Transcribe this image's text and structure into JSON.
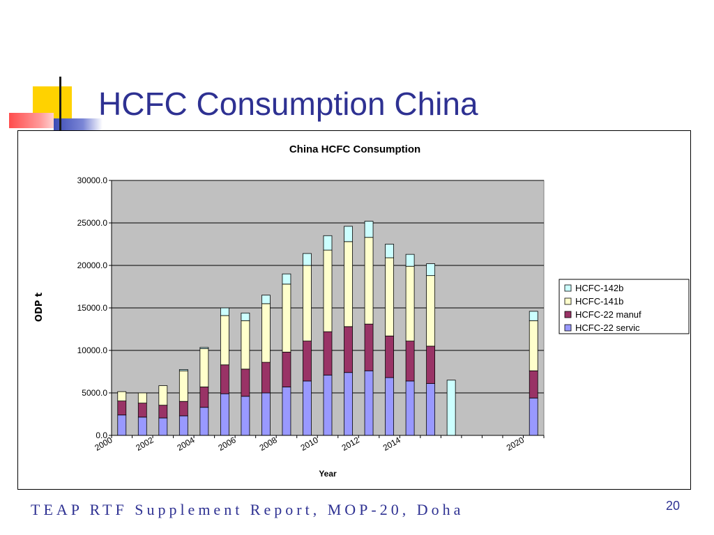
{
  "slide": {
    "title": "HCFC Consumption China",
    "footer": "TEAP RTF Supplement Report, MOP-20, Doha",
    "page_number": "20"
  },
  "chart_data": {
    "type": "bar",
    "stacked": true,
    "title": "China HCFC Consumption",
    "xlabel": "Year",
    "ylabel": "ODP t",
    "ylim": [
      0,
      30000
    ],
    "yticks": [
      0,
      5000,
      10000,
      15000,
      20000,
      25000,
      30000
    ],
    "ytick_format": "0.0",
    "grid": true,
    "plot_background": "#c0c0c0",
    "legend": "right",
    "categories": [
      2000,
      2001,
      2002,
      2003,
      2004,
      2005,
      2006,
      2007,
      2008,
      2009,
      2010,
      2011,
      2012,
      2013,
      2014,
      2015,
      2016,
      2017,
      2018,
      2019,
      2020
    ],
    "xtick_labels": [
      "2000",
      "",
      "2002",
      "",
      "2004",
      "",
      "2006",
      "",
      "2008",
      "",
      "2010",
      "",
      "2012",
      "",
      "2014",
      "",
      "",
      "",
      "",
      "",
      "2020"
    ],
    "series": [
      {
        "name": "HCFC-22 servic",
        "color": "#9999ff",
        "values": [
          2400,
          2150,
          2050,
          2300,
          3300,
          4900,
          4600,
          5000,
          5700,
          6400,
          7100,
          7400,
          7600,
          6800,
          6400,
          6100,
          0,
          0,
          0,
          0,
          4400
        ]
      },
      {
        "name": "HCFC-22 manuf",
        "color": "#993366",
        "values": [
          1650,
          1650,
          1500,
          1700,
          2400,
          3400,
          3200,
          3600,
          4100,
          4700,
          5100,
          5400,
          5500,
          4900,
          4700,
          4400,
          0,
          0,
          0,
          0,
          3200
        ]
      },
      {
        "name": "HCFC-141b",
        "color": "#ffffcc",
        "values": [
          1100,
          1200,
          2300,
          3600,
          4500,
          5800,
          5700,
          6900,
          8000,
          8900,
          9600,
          10000,
          10200,
          9200,
          8800,
          8300,
          0,
          0,
          0,
          0,
          5900
        ]
      },
      {
        "name": "HCFC-142b",
        "color": "#ccffff",
        "values": [
          0,
          0,
          0,
          150,
          150,
          900,
          900,
          1000,
          1200,
          1400,
          1700,
          1800,
          1900,
          1600,
          1400,
          1400,
          6500,
          0,
          0,
          0,
          1100
        ]
      }
    ]
  }
}
